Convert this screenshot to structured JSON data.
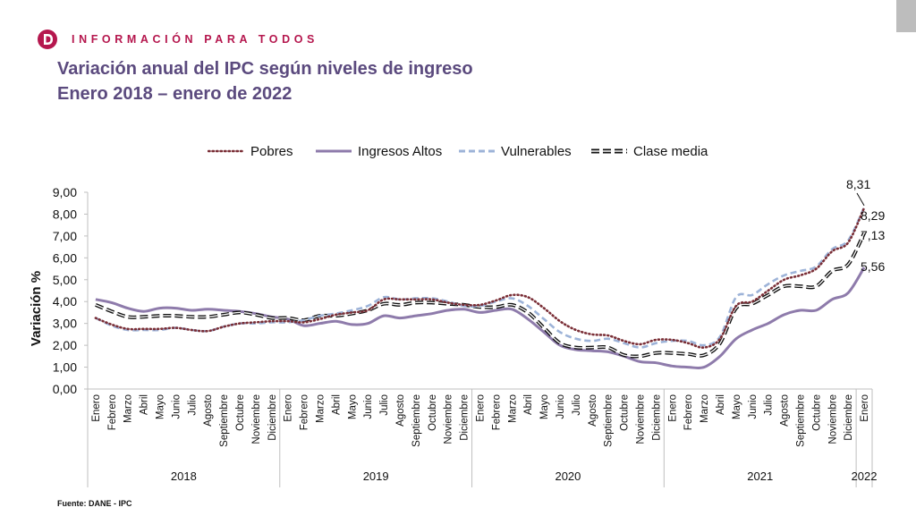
{
  "header": {
    "brand": "INFORMACIÓN PARA TODOS",
    "title_line1": "Variación anual del IPC según niveles de ingreso",
    "title_line2": "Enero 2018 – enero de 2022"
  },
  "source": "Fuente: DANE - IPC",
  "chart_data": {
    "type": "line",
    "title": "Variación anual del IPC según niveles de ingreso",
    "subtitle": "Enero 2018 – enero de 2022",
    "ylabel": "Variación %",
    "xlabel": "",
    "ylim": [
      0,
      9
    ],
    "yticks": [
      "0,00",
      "1,00",
      "2,00",
      "3,00",
      "4,00",
      "5,00",
      "6,00",
      "7,00",
      "8,00",
      "9,00"
    ],
    "grid": false,
    "legend_position": "top",
    "years": [
      "2018",
      "2019",
      "2020",
      "2021",
      "2022"
    ],
    "year_month_counts": [
      12,
      12,
      12,
      12,
      1
    ],
    "categories": [
      "Enero",
      "Febrero",
      "Marzo",
      "Abril",
      "Mayo",
      "Junio",
      "Julio",
      "Agosto",
      "Septiembre",
      "Octubre",
      "Noviembre",
      "Diciembre",
      "Enero",
      "Febrero",
      "Marzo",
      "Abril",
      "Mayo",
      "Junio",
      "Julio",
      "Agosto",
      "Septiembre",
      "Octubre",
      "Noviembre",
      "Diciembre",
      "Enero",
      "Febrero",
      "Marzo",
      "Abril",
      "Mayo",
      "Junio",
      "Julio",
      "Agosto",
      "Septiembre",
      "Octubre",
      "Noviembre",
      "Diciembre",
      "Enero",
      "Febrero",
      "Marzo",
      "Abril",
      "Mayo",
      "Junio",
      "Julio",
      "Agosto",
      "Septiembre",
      "Octubre",
      "Noviembre",
      "Diciembre",
      "Enero"
    ],
    "series": [
      {
        "name": "Pobres",
        "color": "#7a2e36",
        "style": "dotted",
        "values": [
          3.25,
          2.95,
          2.75,
          2.75,
          2.75,
          2.8,
          2.7,
          2.65,
          2.85,
          3.0,
          3.05,
          3.1,
          3.1,
          3.05,
          3.2,
          3.4,
          3.5,
          3.6,
          4.1,
          4.1,
          4.1,
          4.1,
          3.95,
          3.85,
          3.85,
          4.05,
          4.3,
          4.2,
          3.7,
          3.1,
          2.7,
          2.5,
          2.45,
          2.2,
          2.05,
          2.25,
          2.25,
          2.1,
          1.9,
          2.3,
          3.8,
          4.0,
          4.5,
          5.0,
          5.2,
          5.5,
          6.3,
          6.7,
          8.29
        ]
      },
      {
        "name": "Ingresos Altos",
        "color": "#8e7bab",
        "style": "solid",
        "values": [
          4.1,
          3.95,
          3.7,
          3.55,
          3.7,
          3.7,
          3.6,
          3.65,
          3.6,
          3.55,
          3.45,
          3.3,
          3.2,
          2.9,
          3.0,
          3.1,
          2.95,
          3.0,
          3.35,
          3.25,
          3.35,
          3.45,
          3.6,
          3.65,
          3.5,
          3.6,
          3.65,
          3.2,
          2.6,
          2.0,
          1.8,
          1.75,
          1.7,
          1.5,
          1.25,
          1.2,
          1.05,
          1.0,
          1.0,
          1.5,
          2.3,
          2.7,
          3.0,
          3.4,
          3.6,
          3.6,
          4.1,
          4.4,
          5.56
        ]
      },
      {
        "name": "Vulnerables",
        "color": "#9db3d8",
        "style": "dashed",
        "values": [
          3.25,
          2.9,
          2.7,
          2.7,
          2.7,
          2.8,
          2.7,
          2.65,
          2.85,
          3.0,
          3.0,
          3.05,
          3.05,
          3.15,
          3.35,
          3.45,
          3.6,
          3.8,
          4.2,
          4.1,
          4.15,
          4.15,
          4.0,
          3.8,
          3.8,
          4.0,
          4.15,
          3.8,
          3.2,
          2.6,
          2.3,
          2.2,
          2.3,
          2.1,
          1.9,
          2.1,
          2.2,
          2.2,
          2.0,
          2.4,
          4.2,
          4.3,
          4.8,
          5.2,
          5.4,
          5.6,
          6.4,
          6.8,
          8.31
        ]
      },
      {
        "name": "Clase media",
        "color": "#111111",
        "style": "longdash",
        "values": [
          3.85,
          3.55,
          3.3,
          3.3,
          3.35,
          3.35,
          3.3,
          3.3,
          3.4,
          3.5,
          3.4,
          3.25,
          3.25,
          3.15,
          3.35,
          3.35,
          3.45,
          3.6,
          3.9,
          3.85,
          3.95,
          3.95,
          3.9,
          3.85,
          3.75,
          3.75,
          3.85,
          3.5,
          2.8,
          2.1,
          1.9,
          1.9,
          1.9,
          1.55,
          1.5,
          1.65,
          1.65,
          1.6,
          1.55,
          2.1,
          3.7,
          3.9,
          4.3,
          4.7,
          4.7,
          4.7,
          5.4,
          5.7,
          7.13
        ]
      }
    ],
    "end_labels": [
      "8,31",
      "8,29",
      "7,13",
      "5,56"
    ]
  }
}
